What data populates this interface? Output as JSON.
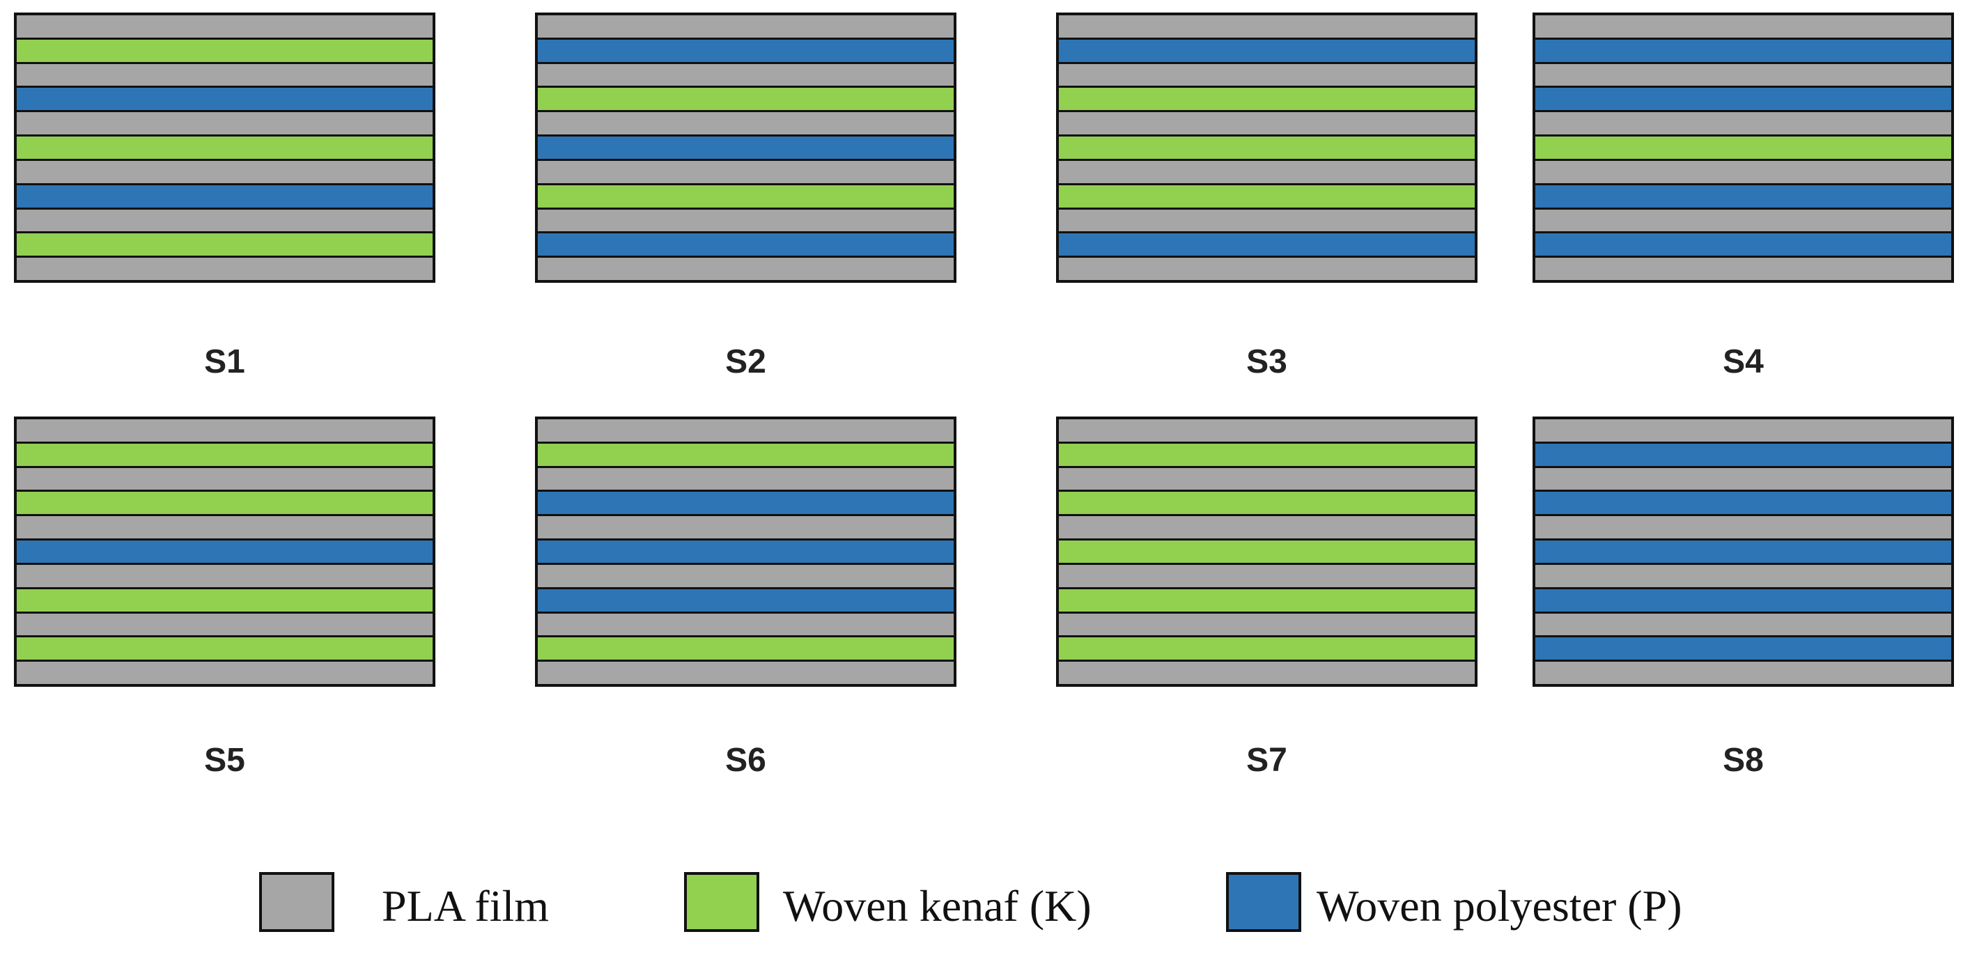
{
  "colors": {
    "P": "#a6a6a6",
    "K": "#92d050",
    "B": "#2e75b6"
  },
  "legend": [
    {
      "key": "P",
      "label": "PLA film",
      "color": "#a6a6a6"
    },
    {
      "key": "K",
      "label": "Woven kenaf (K)",
      "color": "#92d050"
    },
    {
      "key": "B",
      "label": "Woven polyester (P)",
      "color": "#2e75b6"
    }
  ],
  "samples": [
    {
      "label": "S1",
      "layers": [
        "P",
        "K",
        "P",
        "B",
        "P",
        "K",
        "P",
        "B",
        "P",
        "K",
        "P"
      ]
    },
    {
      "label": "S2",
      "layers": [
        "P",
        "B",
        "P",
        "K",
        "P",
        "B",
        "P",
        "K",
        "P",
        "B",
        "P"
      ]
    },
    {
      "label": "S3",
      "layers": [
        "P",
        "B",
        "P",
        "K",
        "P",
        "K",
        "P",
        "K",
        "P",
        "B",
        "P"
      ]
    },
    {
      "label": "S4",
      "layers": [
        "P",
        "B",
        "P",
        "B",
        "P",
        "K",
        "P",
        "B",
        "P",
        "B",
        "P"
      ]
    },
    {
      "label": "S5",
      "layers": [
        "P",
        "K",
        "P",
        "K",
        "P",
        "B",
        "P",
        "K",
        "P",
        "K",
        "P"
      ]
    },
    {
      "label": "S6",
      "layers": [
        "P",
        "K",
        "P",
        "B",
        "P",
        "B",
        "P",
        "B",
        "P",
        "K",
        "P"
      ]
    },
    {
      "label": "S7",
      "layers": [
        "P",
        "K",
        "P",
        "K",
        "P",
        "K",
        "P",
        "K",
        "P",
        "K",
        "P"
      ]
    },
    {
      "label": "S8",
      "layers": [
        "P",
        "B",
        "P",
        "B",
        "P",
        "B",
        "P",
        "B",
        "P",
        "B",
        "P"
      ]
    }
  ]
}
